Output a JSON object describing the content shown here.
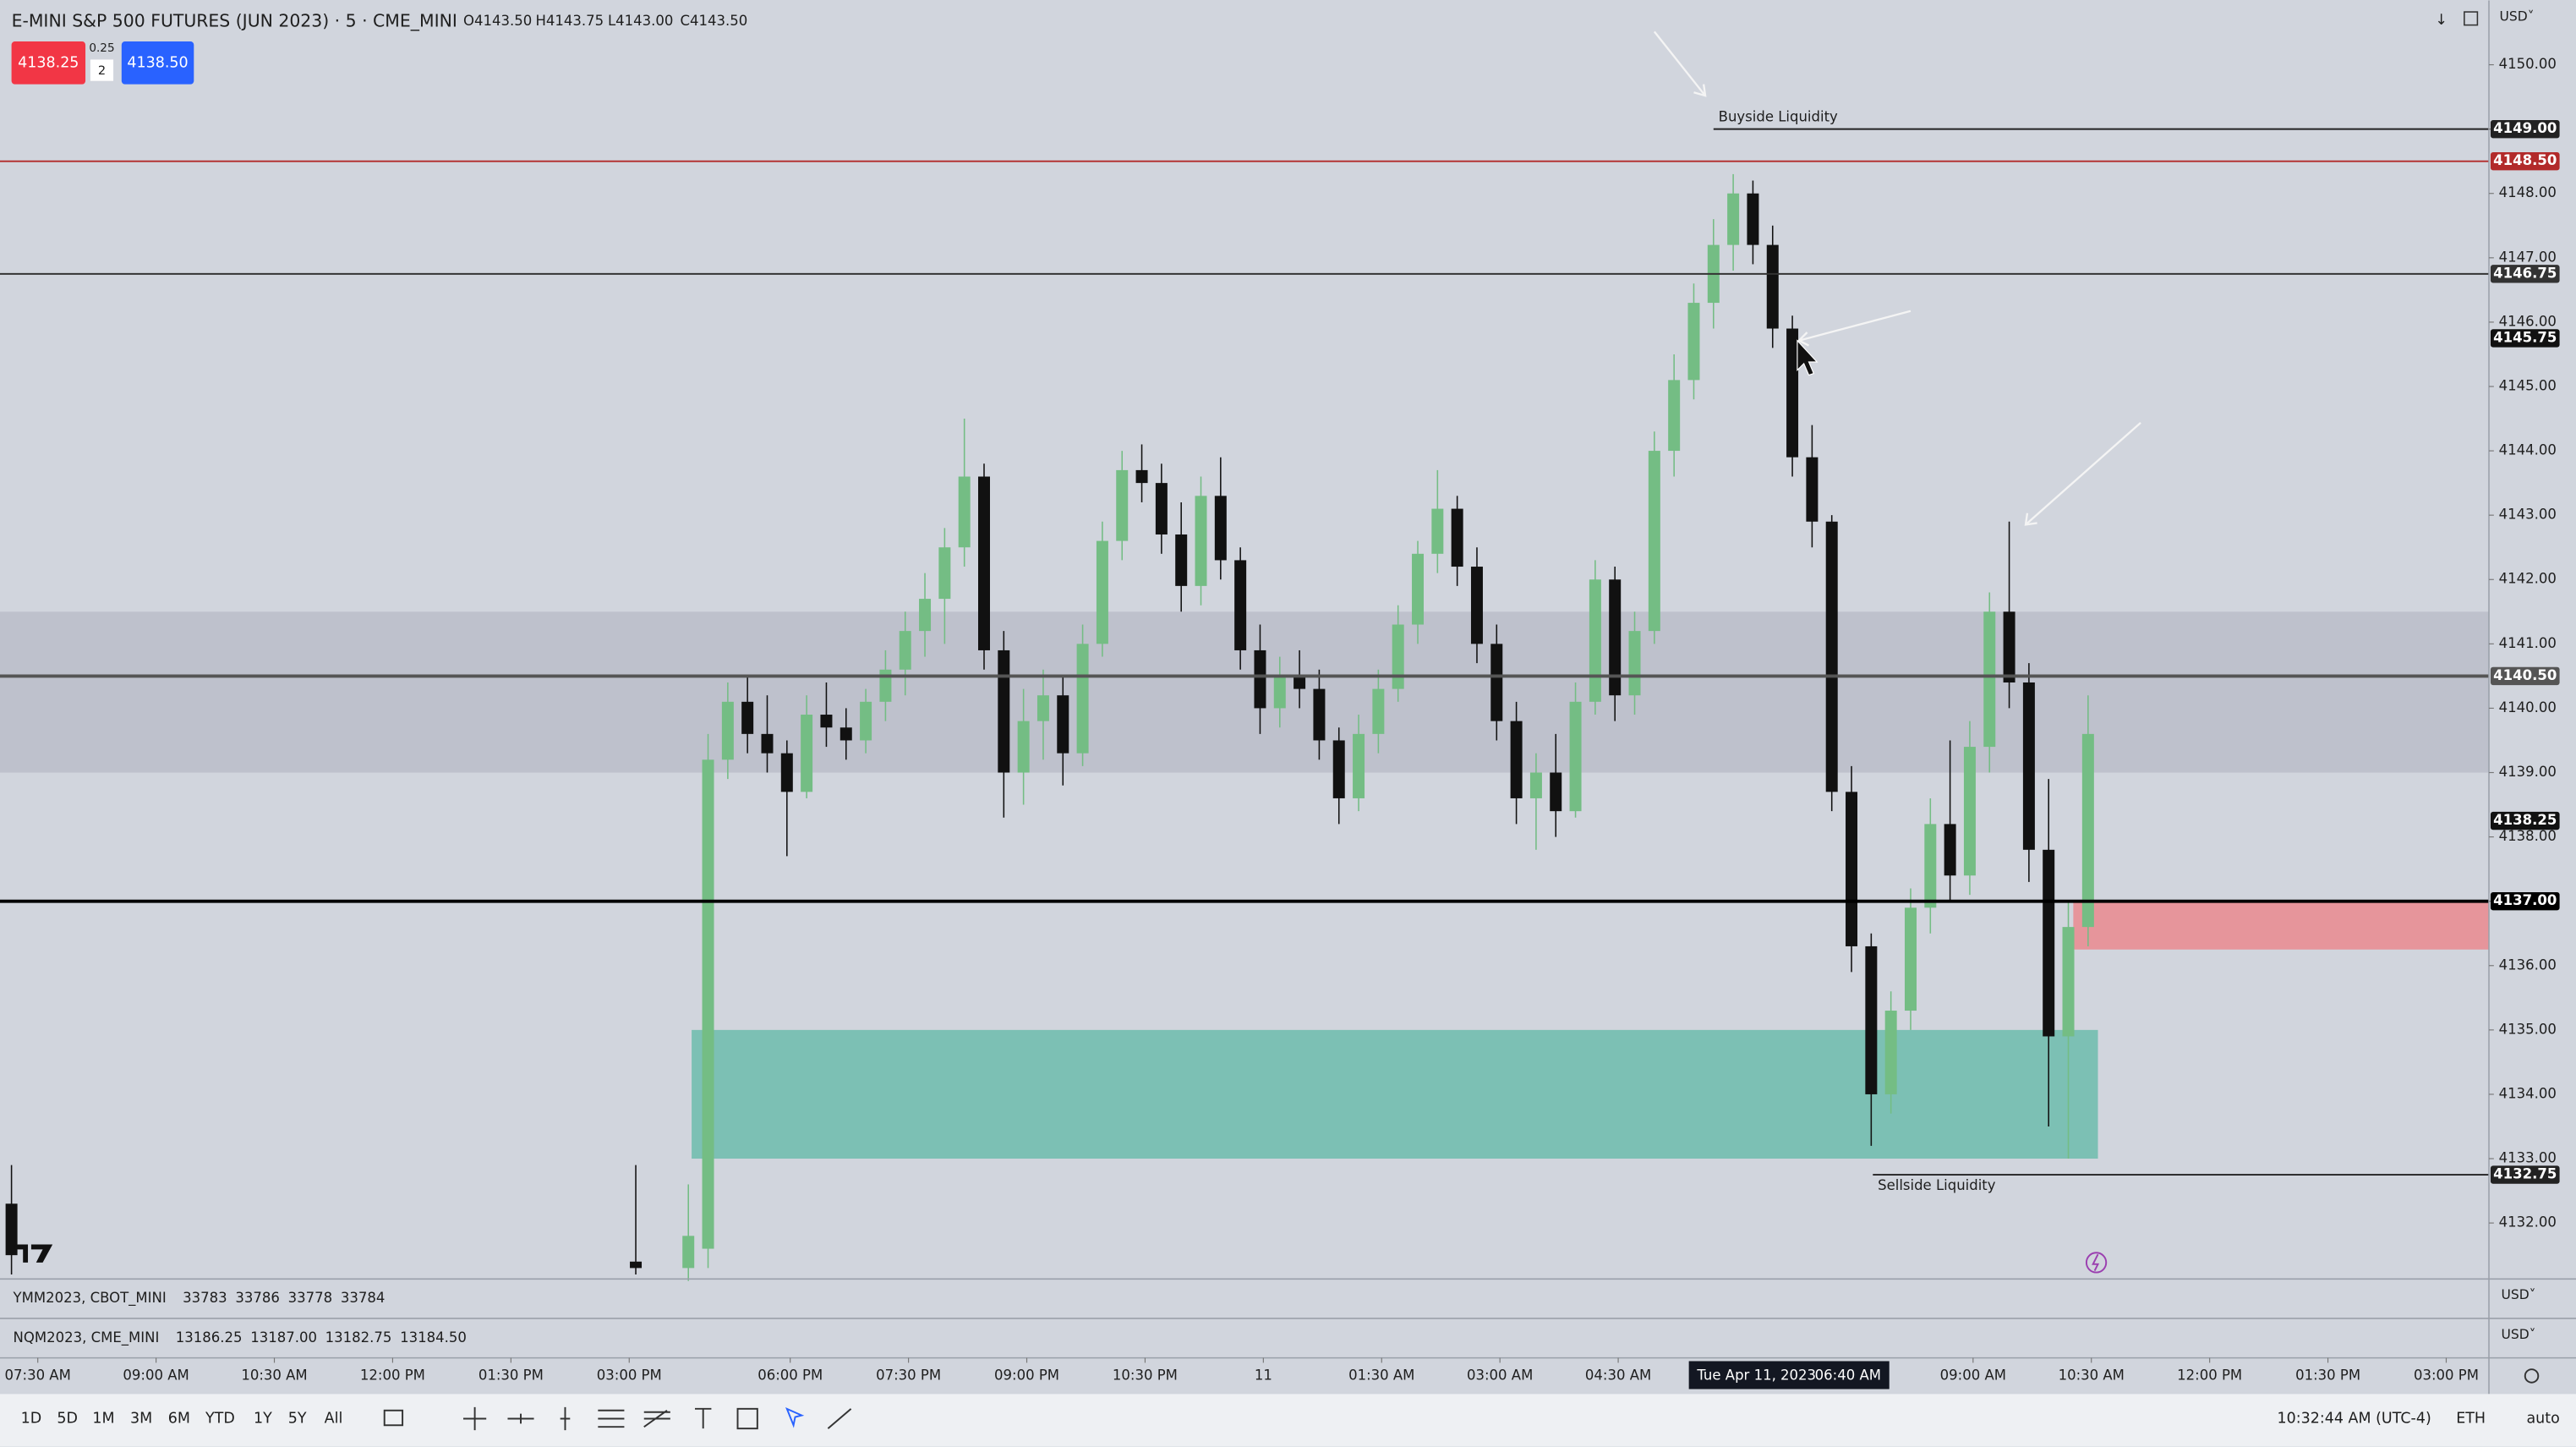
{
  "header": {
    "title": "E-MINI S&P 500 FUTURES (JUN 2023) · 5 · CME_MINI",
    "ohlc": [
      "O4143.50",
      "H4143.75",
      "L4143.00",
      "C4143.50"
    ],
    "bid": "4138.25",
    "tick_size": "0.25",
    "quantity": "2",
    "ask": "4138.50",
    "currency": "USD˅"
  },
  "chart_data": {
    "type": "candlestick",
    "x": [
      -4,
      91,
      99,
      102,
      105,
      108,
      111,
      114,
      117,
      120,
      123,
      126,
      129,
      132,
      135,
      138,
      141,
      144,
      147,
      150,
      153,
      156,
      159,
      162,
      165,
      168,
      171,
      174,
      177,
      180,
      183,
      186,
      189,
      192,
      195,
      198,
      201,
      204,
      207,
      210,
      213,
      216,
      219,
      222,
      225,
      228,
      231,
      234,
      237,
      240,
      243,
      246,
      249,
      252,
      255,
      258,
      261,
      264,
      267,
      270,
      273,
      276,
      279,
      282,
      285,
      288,
      291,
      294,
      297,
      300,
      303,
      306,
      309,
      312
    ],
    "open": [
      4132.3,
      4131.4,
      4131.3,
      4131.6,
      4139.2,
      4140.1,
      4139.6,
      4139.3,
      4138.7,
      4139.9,
      4139.7,
      4139.5,
      4140.1,
      4140.6,
      4141.2,
      4141.7,
      4142.5,
      4143.6,
      4140.9,
      4139.0,
      4139.8,
      4140.2,
      4139.3,
      4141.0,
      4142.6,
      4143.7,
      4143.5,
      4142.7,
      4141.9,
      4143.3,
      4142.3,
      4140.9,
      4140.0,
      4140.5,
      4140.3,
      4139.5,
      4138.6,
      4139.6,
      4140.3,
      4141.3,
      4142.4,
      4143.1,
      4142.2,
      4141.0,
      4139.8,
      4138.6,
      4139.0,
      4138.4,
      4140.1,
      4142.0,
      4140.2,
      4141.2,
      4144.0,
      4145.1,
      4146.3,
      4147.2,
      4148.0,
      4147.2,
      4145.9,
      4143.9,
      4142.9,
      4138.7,
      4136.3,
      4134.0,
      4135.3,
      4136.9,
      4138.2,
      4137.4,
      4139.4,
      4141.5,
      4140.4,
      4137.8,
      4134.9,
      4136.6
    ],
    "high": [
      4132.9,
      4132.9,
      4132.6,
      4139.6,
      4140.4,
      4140.5,
      4140.2,
      4139.5,
      4140.2,
      4140.4,
      4140.0,
      4140.3,
      4140.9,
      4141.5,
      4142.1,
      4142.8,
      4144.5,
      4143.8,
      4141.2,
      4140.3,
      4140.6,
      4140.5,
      4141.3,
      4142.9,
      4144.0,
      4144.1,
      4143.8,
      4143.2,
      4143.6,
      4143.9,
      4142.5,
      4141.3,
      4140.8,
      4140.9,
      4140.6,
      4139.7,
      4139.9,
      4140.6,
      4141.6,
      4142.6,
      4143.7,
      4143.3,
      4142.5,
      4141.3,
      4140.1,
      4139.3,
      4139.6,
      4140.4,
      4142.3,
      4142.2,
      4141.5,
      4144.3,
      4145.5,
      4146.6,
      4147.6,
      4148.3,
      4148.2,
      4147.5,
      4146.1,
      4144.4,
      4143.0,
      4139.1,
      4136.5,
      4135.6,
      4137.2,
      4138.6,
      4139.5,
      4139.8,
      4141.8,
      4142.9,
      4140.7,
      4138.9,
      4137.0,
      4140.2
    ],
    "low": [
      4131.2,
      4131.2,
      4131.1,
      4131.3,
      4138.9,
      4139.3,
      4139.0,
      4137.7,
      4138.6,
      4139.4,
      4139.2,
      4139.3,
      4139.8,
      4140.2,
      4140.8,
      4141.0,
      4142.2,
      4140.6,
      4138.3,
      4138.5,
      4139.2,
      4138.8,
      4139.1,
      4140.8,
      4142.3,
      4143.2,
      4142.4,
      4141.5,
      4141.6,
      4142.0,
      4140.6,
      4139.6,
      4139.7,
      4140.0,
      4139.2,
      4138.2,
      4138.4,
      4139.3,
      4140.1,
      4141.0,
      4142.1,
      4141.9,
      4140.7,
      4139.5,
      4138.2,
      4137.8,
      4138.0,
      4138.3,
      4139.9,
      4139.8,
      4139.9,
      4141.0,
      4143.6,
      4144.8,
      4145.9,
      4146.8,
      4146.9,
      4145.6,
      4143.6,
      4142.5,
      4138.4,
      4135.9,
      4133.2,
      4133.7,
      4135.0,
      4136.5,
      4137.0,
      4137.1,
      4139.0,
      4140.0,
      4137.3,
      4133.5,
      4133.0,
      4136.3
    ],
    "close": [
      4131.5,
      4131.3,
      4131.8,
      4139.2,
      4140.1,
      4139.6,
      4139.3,
      4138.7,
      4139.9,
      4139.7,
      4139.5,
      4140.1,
      4140.6,
      4141.2,
      4141.7,
      4142.5,
      4143.6,
      4140.9,
      4139.0,
      4139.8,
      4140.2,
      4139.3,
      4141.0,
      4142.6,
      4143.7,
      4143.5,
      4142.7,
      4141.9,
      4143.3,
      4142.3,
      4140.9,
      4140.0,
      4140.5,
      4140.3,
      4139.5,
      4138.6,
      4139.6,
      4140.3,
      4141.3,
      4142.4,
      4143.1,
      4142.2,
      4141.0,
      4139.8,
      4138.6,
      4139.0,
      4138.4,
      4140.1,
      4142.0,
      4140.2,
      4141.2,
      4144.0,
      4145.1,
      4146.3,
      4147.2,
      4148.0,
      4147.2,
      4145.9,
      4143.9,
      4142.9,
      4138.7,
      4136.3,
      4134.0,
      4135.3,
      4136.9,
      4138.2,
      4137.4,
      4139.4,
      4141.5,
      4140.4,
      4137.8,
      4134.9,
      4136.6,
      4139.6
    ],
    "up_color": "#74bd84",
    "down_color": "#111111",
    "xlim": [
      -5.75,
      373
    ],
    "ylim": [
      4131.13,
      4151.0
    ],
    "xticks": [
      {
        "value": 0,
        "label": "07:30 AM"
      },
      {
        "value": 18,
        "label": "09:00 AM"
      },
      {
        "value": 36,
        "label": "10:30 AM"
      },
      {
        "value": 54,
        "label": "12:00 PM"
      },
      {
        "value": 72,
        "label": "01:30 PM"
      },
      {
        "value": 90,
        "label": "03:00 PM"
      },
      {
        "value": 114.5,
        "label": "06:00 PM"
      },
      {
        "value": 132.5,
        "label": "07:30 PM"
      },
      {
        "value": 150.5,
        "label": "09:00 PM"
      },
      {
        "value": 168.5,
        "label": "10:30 PM"
      },
      {
        "value": 186.5,
        "label": "11"
      },
      {
        "value": 204.5,
        "label": "01:30 AM"
      },
      {
        "value": 222.5,
        "label": "03:00 AM"
      },
      {
        "value": 240.5,
        "label": "04:30 AM"
      },
      {
        "value": 294.5,
        "label": "09:00 AM"
      },
      {
        "value": 312.5,
        "label": "10:30 AM"
      },
      {
        "value": 330.5,
        "label": "12:00 PM"
      },
      {
        "value": 348.5,
        "label": "01:30 PM"
      },
      {
        "value": 366.5,
        "label": "03:00 PM"
      }
    ],
    "yticks": [
      {
        "value": 4132,
        "label": "4132.00"
      },
      {
        "value": 4133,
        "label": "4133.00"
      },
      {
        "value": 4134,
        "label": "4134.00"
      },
      {
        "value": 4135,
        "label": "4135.00"
      },
      {
        "value": 4136,
        "label": "4136.00"
      },
      {
        "value": 4137,
        "label": "4137.00"
      },
      {
        "value": 4138,
        "label": "4138.00"
      },
      {
        "value": 4139,
        "label": "4139.00"
      },
      {
        "value": 4140,
        "label": "4140.00"
      },
      {
        "value": 4141,
        "label": "4141.00"
      },
      {
        "value": 4142,
        "label": "4142.00"
      },
      {
        "value": 4143,
        "label": "4143.00"
      },
      {
        "value": 4144,
        "label": "4144.00"
      },
      {
        "value": 4145,
        "label": "4145.00"
      },
      {
        "value": 4146,
        "label": "4146.00"
      },
      {
        "value": 4147,
        "label": "4147.00"
      },
      {
        "value": 4148,
        "label": "4148.00"
      },
      {
        "value": 4149,
        "label": "4149.00"
      },
      {
        "value": 4150,
        "label": "4150.00"
      }
    ],
    "grid": false,
    "crosshair": {
      "value": 266.5,
      "date": "Tue Apr 11, 2023",
      "time": "06:40 AM"
    },
    "zones": [
      {
        "from": 4139.0,
        "to": 4141.5,
        "color": "rgba(160,160,175,0.38)"
      },
      {
        "from": 4133.0,
        "to": 4135.0,
        "x_from": 99.5,
        "x_to": 313.5,
        "color": "#7cc0b4"
      },
      {
        "from": 4136.25,
        "to": 4137.0,
        "x_from": 309.75,
        "color": "#e6959b"
      }
    ],
    "levels": [
      {
        "value": 4149.0,
        "label": "4149.00",
        "x_from": 255,
        "color": "#222222",
        "width": 1,
        "line": true,
        "annotation": "Buyside Liquidity"
      },
      {
        "value": 4148.5,
        "label": "4148.50",
        "color": "#b22a2a",
        "width": 1,
        "line": true
      },
      {
        "value": 4146.75,
        "label": "4146.75",
        "color": "#333333",
        "width": 1,
        "line": true
      },
      {
        "value": 4145.75,
        "label": "4145.75",
        "color": "#111111",
        "width": 1,
        "line": false
      },
      {
        "value": 4140.5,
        "label": "4140.50",
        "color": "#555555",
        "width": 2,
        "line": true
      },
      {
        "value": 4138.25,
        "label": "4138.25",
        "color": "#111111",
        "width": 1,
        "line": false
      },
      {
        "value": 4137.0,
        "label": "4137.00",
        "color": "#000000",
        "width": 2,
        "line": true
      },
      {
        "value": 4132.75,
        "label": "4132.75",
        "x_from": 279.25,
        "color": "#222222",
        "width": 1,
        "line": true,
        "annotation": "Sellside Liquidity"
      }
    ]
  },
  "panes": [
    {
      "symbol": "YMM2023, CBOT_MINI",
      "values": [
        "33783",
        "33786",
        "33778",
        "33784"
      ],
      "currency": "USD˅"
    },
    {
      "symbol": "NQM2023, CME_MINI",
      "values": [
        "13186.25",
        "13187.00",
        "13182.75",
        "13184.50"
      ],
      "currency": "USD˅"
    }
  ],
  "toolbar": {
    "ranges": [
      "1D",
      "5D",
      "1M",
      "3M",
      "6M",
      "YTD",
      "1Y",
      "5Y",
      "All"
    ],
    "clock": "10:32:44 AM (UTC-4)",
    "session": "ETH",
    "scale": "auto"
  }
}
